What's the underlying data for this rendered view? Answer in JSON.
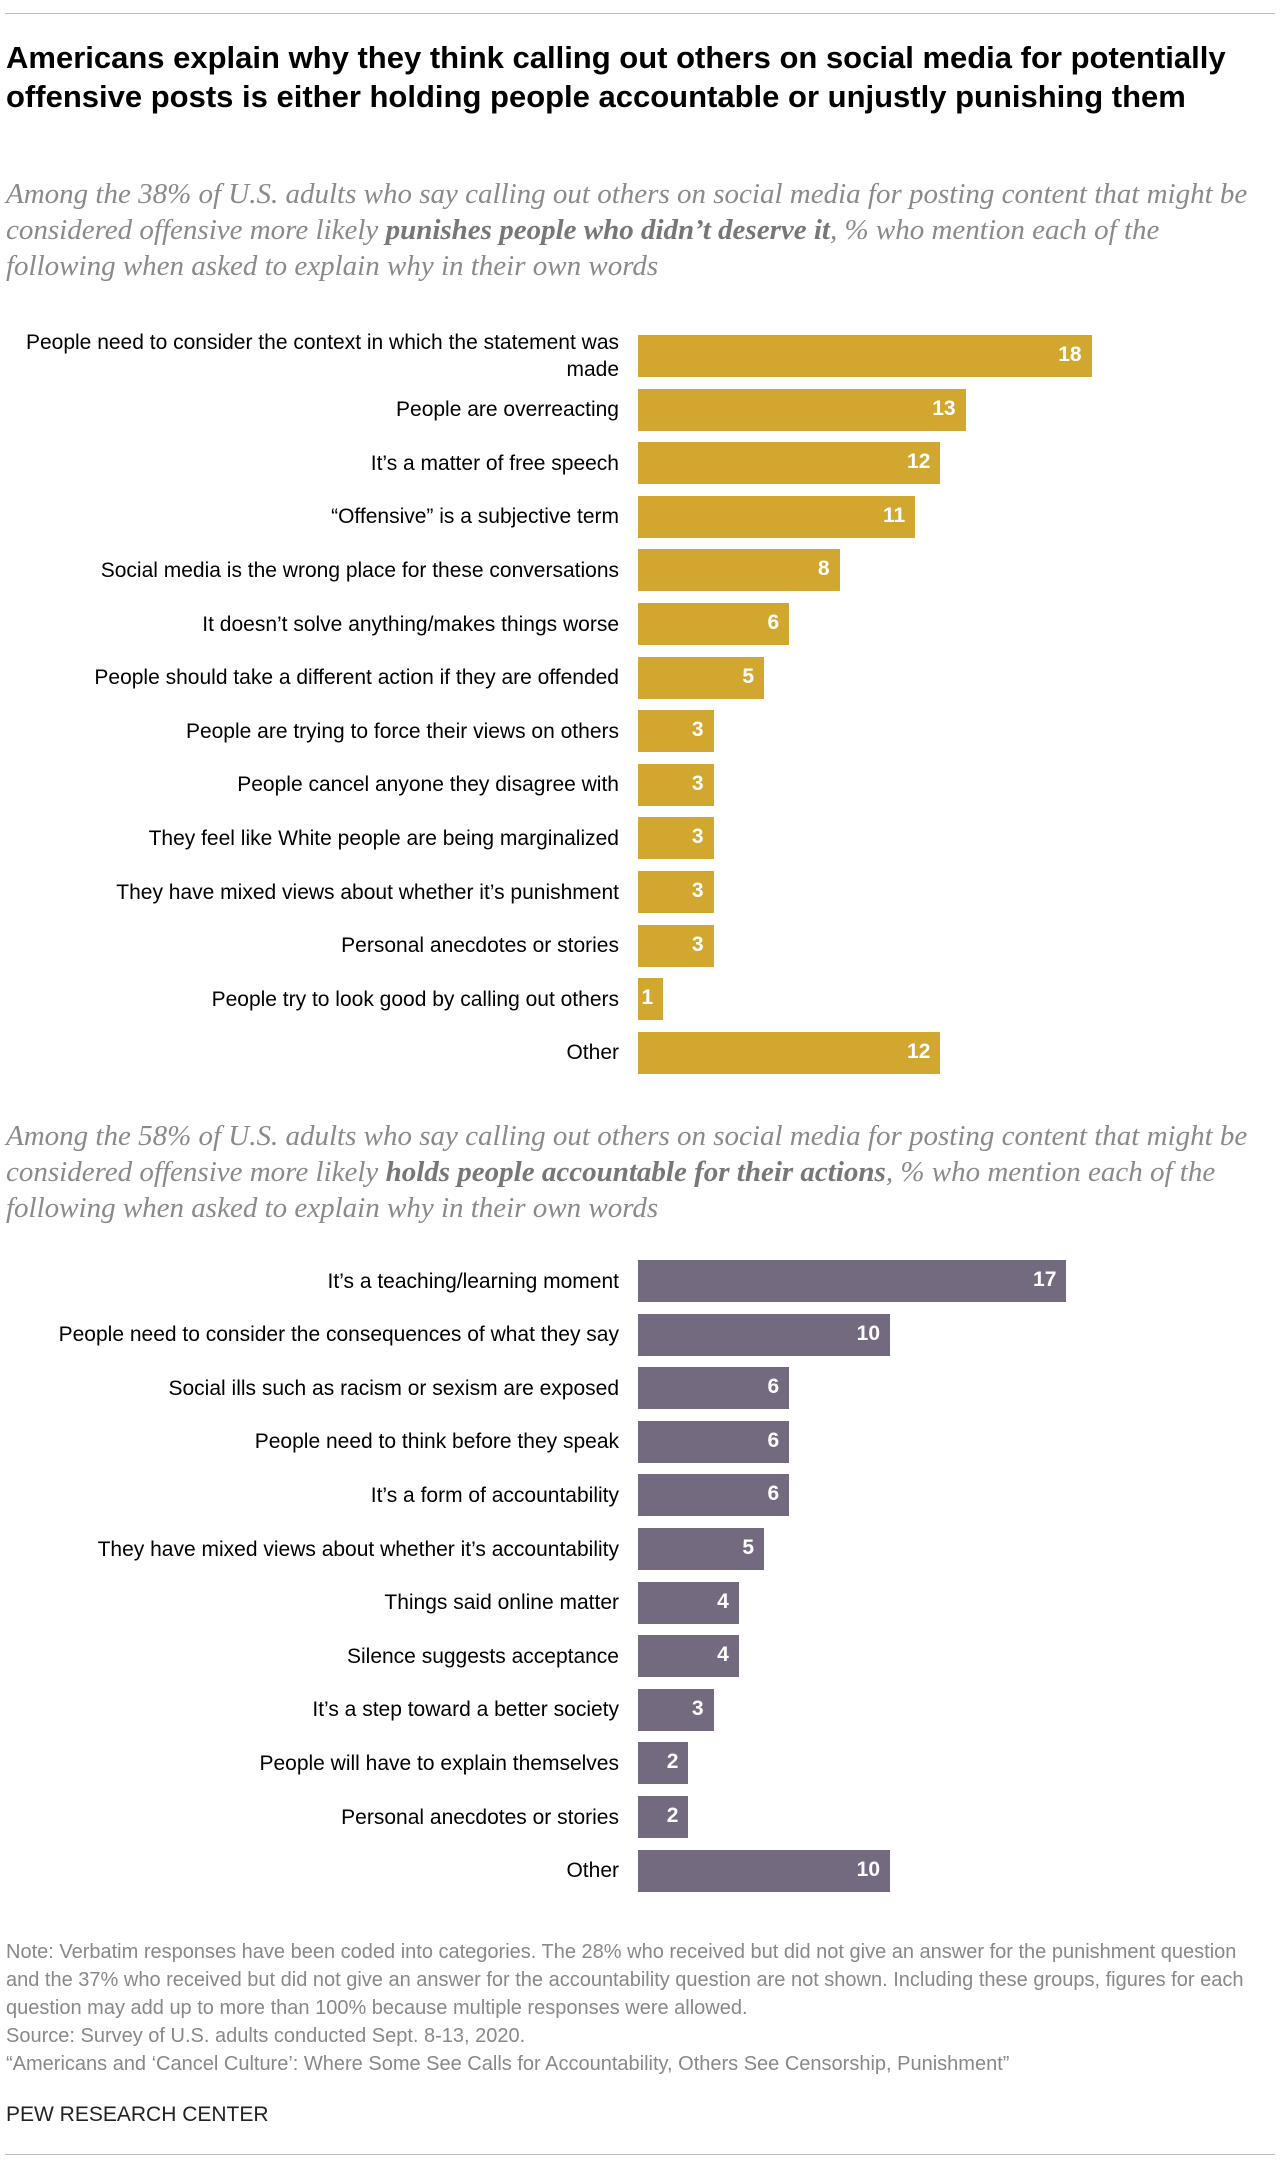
{
  "title": "Americans explain why they think calling out others on social media for potentially offensive posts is either holding people accountable or unjustly punishing them",
  "chart_data": [
    {
      "type": "bar",
      "orientation": "horizontal",
      "color": "#d1a730",
      "subtitle": [
        "Among the 38% of U.S. adults who say calling out others on social media for posting content that might be considered offensive more likely ",
        "punishes people who didn’t deserve it",
        ", % who mention each of the following when asked to explain why in their own words"
      ],
      "categories": [
        "People need to consider the context in which the statement was made",
        "People are overreacting",
        "It’s a matter of free speech",
        "“Offensive” is a subjective term",
        "Social media is the wrong place for these conversations",
        "It doesn’t solve anything/makes things worse",
        "People should take a different action if they are offended",
        "People are trying to force their views on others",
        "People cancel anyone they disagree with",
        "They feel like White people are being marginalized",
        "They have mixed views about whether it’s punishment",
        "Personal anecdotes or stories",
        "People try to look good by calling out others",
        "Other"
      ],
      "values": [
        18,
        13,
        12,
        11,
        8,
        6,
        5,
        3,
        3,
        3,
        3,
        3,
        1,
        12
      ]
    },
    {
      "type": "bar",
      "orientation": "horizontal",
      "color": "#736a7f",
      "subtitle": [
        "Among the 58% of U.S. adults who say calling out others on social media for posting content that might be considered offensive more likely ",
        "holds people accountable for their actions",
        ", % who mention each of the following when asked to explain why in their own words"
      ],
      "categories": [
        "It’s a teaching/learning moment",
        "People need to consider the consequences of what they say",
        "Social ills such as racism or sexism are exposed",
        "People need to think before they speak",
        "It’s a form of accountability",
        "They have mixed views about whether it’s accountability",
        "Things said online matter",
        "Silence suggests acceptance",
        "It’s a step toward a better society",
        "People will have to explain themselves",
        "Personal anecdotes or stories",
        "Other"
      ],
      "values": [
        17,
        10,
        6,
        6,
        6,
        5,
        4,
        4,
        3,
        2,
        2,
        10
      ]
    }
  ],
  "note": "Note: Verbatim responses have been coded into categories. The 28% who received but did not give an answer for the punishment question and the 37% who received but did not give an answer for the accountability question are not shown. Including these groups, figures for each question may add up to more than 100% because multiple responses were allowed.",
  "source": "Source: Survey of U.S. adults conducted Sept. 8-13, 2020.",
  "report": "“Americans and ‘Cancel Culture’: Where Some See Calls for Accountability, Others See Censorship, Punishment”",
  "brand": "PEW RESEARCH CENTER"
}
